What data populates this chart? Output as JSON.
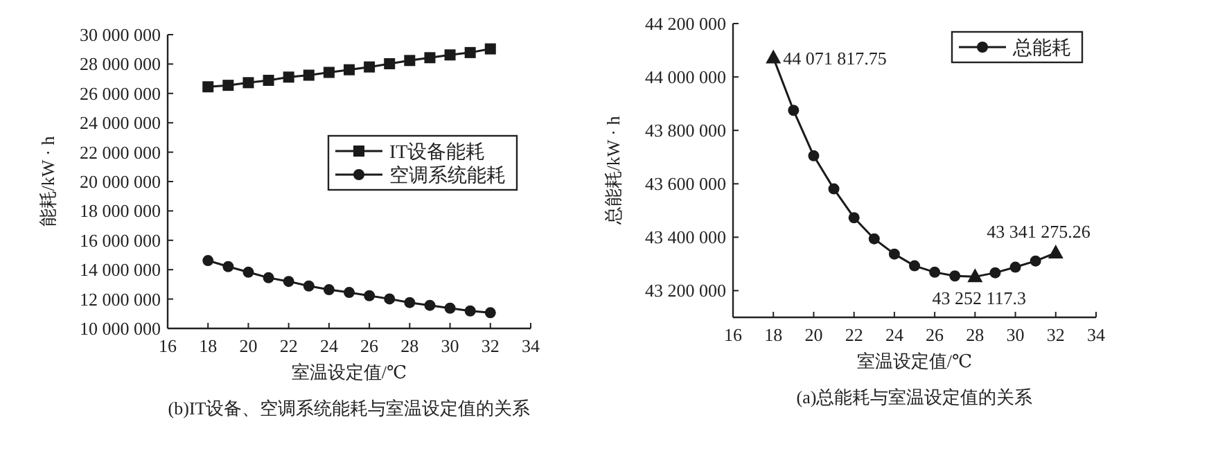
{
  "chart_data": [
    {
      "type": "line",
      "xlabel": "室温设定值/℃",
      "ylabel": "能耗/kW · h",
      "annotations": [
        "(b)IT设备、空调系统能耗与室温设定值的关系"
      ],
      "x": [
        18,
        19,
        20,
        21,
        22,
        23,
        24,
        25,
        26,
        27,
        28,
        29,
        30,
        31,
        32
      ],
      "xlim": [
        16,
        34
      ],
      "xticks": [
        16,
        18,
        20,
        22,
        24,
        26,
        28,
        30,
        32,
        34
      ],
      "ylim": [
        10000000,
        30000000
      ],
      "yticks": [
        {
          "value": 10000000,
          "label": "10 000 000"
        },
        {
          "value": 12000000,
          "label": "12 000 000"
        },
        {
          "value": 14000000,
          "label": "14 000 000"
        },
        {
          "value": 16000000,
          "label": "16 000 000"
        },
        {
          "value": 18000000,
          "label": "18 000 000"
        },
        {
          "value": 20000000,
          "label": "20 000 000"
        },
        {
          "value": 22000000,
          "label": "22 000 000"
        },
        {
          "value": 24000000,
          "label": "24 000 000"
        },
        {
          "value": 26000000,
          "label": "26 000 000"
        },
        {
          "value": 28000000,
          "label": "28 000 000"
        },
        {
          "value": 30000000,
          "label": "30 000 000"
        }
      ],
      "legend": "right",
      "series": [
        {
          "name": "IT设备能耗",
          "color": "#1a1a1a",
          "marker": "square",
          "values": [
            26450000,
            26550000,
            26730000,
            26890000,
            27110000,
            27240000,
            27430000,
            27610000,
            27800000,
            28020000,
            28240000,
            28430000,
            28620000,
            28780000,
            29030000
          ]
        },
        {
          "name": "空调系统能耗",
          "color": "#1a1a1a",
          "marker": "circle",
          "values": [
            14620000,
            14210000,
            13830000,
            13450000,
            13200000,
            12890000,
            12640000,
            12450000,
            12230000,
            12010000,
            11760000,
            11570000,
            11380000,
            11190000,
            11070000
          ]
        }
      ]
    },
    {
      "type": "line",
      "xlabel": "室温设定值/℃",
      "ylabel": "总能耗/kW · h",
      "annotations": [
        "(a)总能耗与室温设定值的关系"
      ],
      "x": [
        18,
        19,
        20,
        21,
        22,
        23,
        24,
        25,
        26,
        27,
        28,
        29,
        30,
        31,
        32
      ],
      "xlim": [
        16,
        34
      ],
      "xticks": [
        16,
        18,
        20,
        22,
        24,
        26,
        28,
        30,
        32,
        34
      ],
      "ylim": [
        43100000,
        44200000
      ],
      "yticks": [
        {
          "value": 43200000,
          "label": "43 200 000"
        },
        {
          "value": 43400000,
          "label": "43 400 000"
        },
        {
          "value": 43600000,
          "label": "43 600 000"
        },
        {
          "value": 43800000,
          "label": "43 800 000"
        },
        {
          "value": 44000000,
          "label": "44 000 000"
        },
        {
          "value": 44200000,
          "label": "44 200 000"
        }
      ],
      "legend": "top right",
      "series": [
        {
          "color": "#1a1a1a",
          "marker": "none",
          "values": [
            44071817.75,
            43875000,
            43705000,
            43581000,
            43473000,
            43394000,
            43337000,
            43293000,
            43269000,
            43255000,
            43252117.3,
            43267000,
            43288000,
            43311000,
            43341275.26
          ]
        },
        {
          "type": "scatter",
          "name": "总能耗",
          "color": "#1a1a1a",
          "marker": "circle",
          "x": [
            19,
            20,
            21,
            22,
            23,
            24,
            25,
            26,
            27,
            29,
            30,
            31
          ],
          "values": [
            43875000,
            43705000,
            43581000,
            43473000,
            43394000,
            43337000,
            43293000,
            43269000,
            43255000,
            43267000,
            43288000,
            43311000
          ]
        },
        {
          "type": "scatter",
          "color": "#1a1a1a",
          "marker": "triangle",
          "x": [
            18,
            28,
            32
          ],
          "values": [
            44071817.75,
            43252117.3,
            43341275.26
          ],
          "value_labels": [
            "44 071 817.75",
            "43 252 117.3",
            "43 341 275.26"
          ]
        }
      ]
    }
  ]
}
